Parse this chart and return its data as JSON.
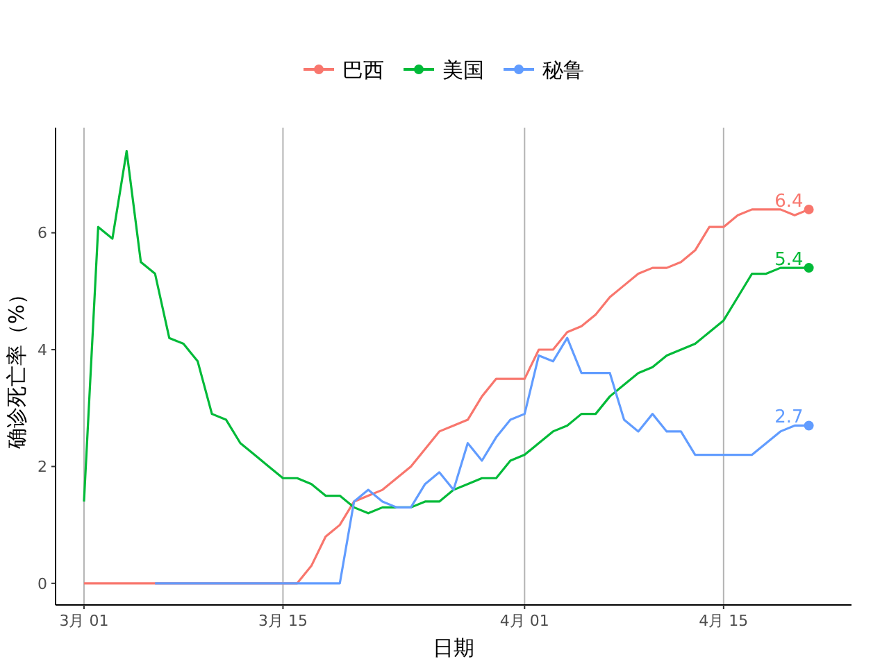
{
  "chart_data": {
    "type": "line",
    "xlabel": "日期",
    "ylabel": "确诊死亡率（%）",
    "x": [
      "--03-01",
      "--03-02",
      "--03-03",
      "--03-04",
      "--03-05",
      "--03-06",
      "--03-07",
      "--03-08",
      "--03-09",
      "--03-10",
      "--03-11",
      "--03-12",
      "--03-13",
      "--03-14",
      "--03-15",
      "--03-16",
      "--03-17",
      "--03-18",
      "--03-19",
      "--03-20",
      "--03-21",
      "--03-22",
      "--03-23",
      "--03-24",
      "--03-25",
      "--03-26",
      "--03-27",
      "--03-28",
      "--03-29",
      "--03-30",
      "--03-31",
      "--04-01",
      "--04-02",
      "--04-03",
      "--04-04",
      "--04-05",
      "--04-06",
      "--04-07",
      "--04-08",
      "--04-09",
      "--04-10",
      "--04-11",
      "--04-12",
      "--04-13",
      "--04-14",
      "--04-15",
      "--04-16",
      "--04-17",
      "--04-18",
      "--04-19",
      "--04-20",
      "--04-21"
    ],
    "series": [
      {
        "name": "巴西",
        "color": "#f8766d",
        "values": [
          0,
          0,
          0,
          0,
          0,
          0,
          0,
          0,
          0,
          0,
          0,
          0,
          0,
          0,
          0,
          0,
          0.3,
          0.8,
          1.0,
          1.4,
          1.5,
          1.6,
          1.8,
          2.0,
          2.3,
          2.6,
          2.7,
          2.8,
          3.2,
          3.5,
          3.5,
          3.5,
          4.0,
          4.0,
          4.3,
          4.4,
          4.6,
          4.9,
          5.1,
          5.3,
          5.4,
          5.4,
          5.5,
          5.7,
          6.1,
          6.1,
          6.3,
          6.4,
          6.4,
          6.4,
          6.3,
          6.4
        ],
        "value_labels": [
          null,
          null,
          null,
          null,
          null,
          null,
          null,
          null,
          null,
          null,
          null,
          null,
          null,
          null,
          null,
          null,
          null,
          null,
          null,
          null,
          null,
          null,
          null,
          null,
          null,
          null,
          null,
          null,
          null,
          null,
          null,
          null,
          null,
          null,
          null,
          null,
          null,
          null,
          null,
          null,
          null,
          null,
          null,
          null,
          null,
          null,
          null,
          null,
          null,
          null,
          null,
          "6.4"
        ]
      },
      {
        "name": "美国",
        "color": "#00ba38",
        "values": [
          1.4,
          6.1,
          5.9,
          7.4,
          5.5,
          5.3,
          4.2,
          4.1,
          3.8,
          2.9,
          2.8,
          2.4,
          2.2,
          2.0,
          1.8,
          1.8,
          1.7,
          1.5,
          1.5,
          1.3,
          1.2,
          1.3,
          1.3,
          1.3,
          1.4,
          1.4,
          1.6,
          1.7,
          1.8,
          1.8,
          2.1,
          2.2,
          2.4,
          2.6,
          2.7,
          2.9,
          2.9,
          3.2,
          3.4,
          3.6,
          3.7,
          3.9,
          4.0,
          4.1,
          4.3,
          4.5,
          4.9,
          5.3,
          5.3,
          5.4,
          5.4,
          5.4
        ],
        "value_labels": [
          null,
          null,
          null,
          null,
          null,
          null,
          null,
          null,
          null,
          null,
          null,
          null,
          null,
          null,
          null,
          null,
          null,
          null,
          null,
          null,
          null,
          null,
          null,
          null,
          null,
          null,
          null,
          null,
          null,
          null,
          null,
          null,
          null,
          null,
          null,
          null,
          null,
          null,
          null,
          null,
          null,
          null,
          null,
          null,
          null,
          null,
          null,
          null,
          null,
          null,
          null,
          "5.4"
        ]
      },
      {
        "name": "秘鲁",
        "color": "#619cff",
        "x": [
          "--03-06",
          "--03-07",
          "--03-08",
          "--03-09",
          "--03-10",
          "--03-11",
          "--03-12",
          "--03-13",
          "--03-14",
          "--03-15",
          "--03-16",
          "--03-17",
          "--03-18",
          "--03-19",
          "--03-20",
          "--03-21",
          "--03-22",
          "--03-23",
          "--03-24",
          "--03-25",
          "--03-26",
          "--03-27",
          "--03-28",
          "--03-29",
          "--03-30",
          "--03-31",
          "--04-01",
          "--04-02",
          "--04-03",
          "--04-04",
          "--04-05",
          "--04-06",
          "--04-07",
          "--04-08",
          "--04-09",
          "--04-10",
          "--04-11",
          "--04-12",
          "--04-13",
          "--04-14",
          "--04-15",
          "--04-16",
          "--04-17",
          "--04-18",
          "--04-19",
          "--04-20",
          "--04-21"
        ],
        "values": [
          0,
          0,
          0,
          0,
          0,
          0,
          0,
          0,
          0,
          0,
          0,
          0,
          0,
          0,
          1.4,
          1.6,
          1.4,
          1.3,
          1.3,
          1.7,
          1.9,
          1.6,
          2.4,
          2.1,
          2.5,
          2.8,
          2.9,
          3.9,
          3.8,
          4.2,
          3.6,
          3.6,
          3.6,
          2.8,
          2.6,
          2.9,
          2.6,
          2.6,
          2.2,
          2.2,
          2.2,
          2.2,
          2.2,
          2.4,
          2.6,
          2.7,
          2.7
        ],
        "value_labels": [
          null,
          null,
          null,
          null,
          null,
          null,
          null,
          null,
          null,
          null,
          null,
          null,
          null,
          null,
          null,
          null,
          null,
          null,
          null,
          null,
          null,
          null,
          null,
          null,
          null,
          null,
          null,
          null,
          null,
          null,
          null,
          null,
          null,
          null,
          null,
          null,
          null,
          null,
          null,
          null,
          null,
          null,
          null,
          null,
          null,
          null,
          "2.7"
        ]
      }
    ],
    "xlim": [
      "--02-27",
      "--04-24"
    ],
    "xticks": [
      {
        "value": "--03-01",
        "label": "3月 01"
      },
      {
        "value": "--03-15",
        "label": "3月 15"
      },
      {
        "value": "--04-01",
        "label": "4月 01"
      },
      {
        "value": "--04-15",
        "label": "4月 15"
      }
    ],
    "ylim": [
      -0.37,
      7.8
    ],
    "yticks": [
      0,
      2,
      4,
      6
    ],
    "grid": "x",
    "legend": "top",
    "line_style": "solid"
  }
}
